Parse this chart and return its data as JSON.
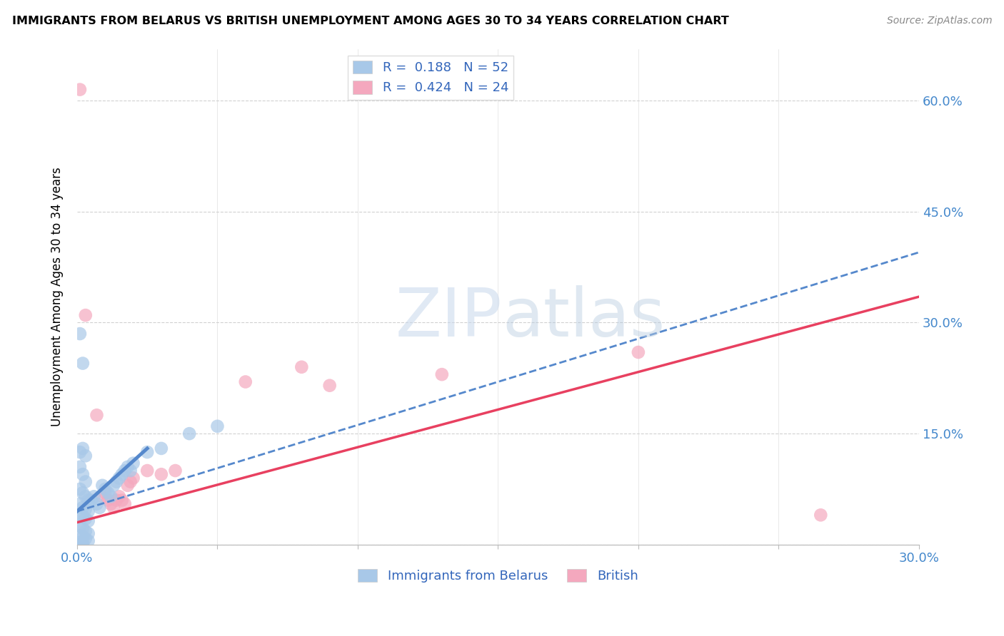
{
  "title": "IMMIGRANTS FROM BELARUS VS BRITISH UNEMPLOYMENT AMONG AGES 30 TO 34 YEARS CORRELATION CHART",
  "source": "Source: ZipAtlas.com",
  "ylabel": "Unemployment Among Ages 30 to 34 years",
  "legend_labels": [
    "Immigrants from Belarus",
    "British"
  ],
  "R_blue": 0.188,
  "N_blue": 52,
  "R_pink": 0.424,
  "N_pink": 24,
  "xlim": [
    0.0,
    0.3
  ],
  "ylim": [
    0.0,
    0.67
  ],
  "xticks": [
    0.0,
    0.05,
    0.1,
    0.15,
    0.2,
    0.25,
    0.3
  ],
  "yticks": [
    0.0,
    0.15,
    0.3,
    0.45,
    0.6
  ],
  "watermark_zip": "ZIP",
  "watermark_atlas": "atlas",
  "blue_color": "#a8c8e8",
  "pink_color": "#f4a8be",
  "blue_line_color": "#5588cc",
  "pink_line_color": "#e84060",
  "blue_dots": [
    [
      0.001,
      0.285
    ],
    [
      0.002,
      0.245
    ],
    [
      0.001,
      0.125
    ],
    [
      0.002,
      0.13
    ],
    [
      0.003,
      0.12
    ],
    [
      0.001,
      0.105
    ],
    [
      0.002,
      0.095
    ],
    [
      0.003,
      0.085
    ],
    [
      0.001,
      0.075
    ],
    [
      0.002,
      0.07
    ],
    [
      0.003,
      0.065
    ],
    [
      0.004,
      0.06
    ],
    [
      0.001,
      0.055
    ],
    [
      0.002,
      0.05
    ],
    [
      0.003,
      0.048
    ],
    [
      0.004,
      0.045
    ],
    [
      0.001,
      0.04
    ],
    [
      0.002,
      0.038
    ],
    [
      0.003,
      0.035
    ],
    [
      0.004,
      0.032
    ],
    [
      0.001,
      0.025
    ],
    [
      0.002,
      0.022
    ],
    [
      0.003,
      0.018
    ],
    [
      0.004,
      0.015
    ],
    [
      0.001,
      0.012
    ],
    [
      0.002,
      0.01
    ],
    [
      0.003,
      0.008
    ],
    [
      0.004,
      0.005
    ],
    [
      0.001,
      0.003
    ],
    [
      0.002,
      0.001
    ],
    [
      0.001,
      0.0
    ],
    [
      0.002,
      0.0
    ],
    [
      0.005,
      0.06
    ],
    [
      0.006,
      0.065
    ],
    [
      0.007,
      0.055
    ],
    [
      0.008,
      0.05
    ],
    [
      0.009,
      0.08
    ],
    [
      0.01,
      0.075
    ],
    [
      0.011,
      0.07
    ],
    [
      0.012,
      0.065
    ],
    [
      0.013,
      0.08
    ],
    [
      0.014,
      0.085
    ],
    [
      0.015,
      0.09
    ],
    [
      0.016,
      0.095
    ],
    [
      0.017,
      0.1
    ],
    [
      0.018,
      0.105
    ],
    [
      0.019,
      0.1
    ],
    [
      0.02,
      0.11
    ],
    [
      0.025,
      0.125
    ],
    [
      0.03,
      0.13
    ],
    [
      0.04,
      0.15
    ],
    [
      0.05,
      0.16
    ]
  ],
  "pink_dots": [
    [
      0.001,
      0.615
    ],
    [
      0.003,
      0.31
    ],
    [
      0.007,
      0.175
    ],
    [
      0.009,
      0.065
    ],
    [
      0.01,
      0.07
    ],
    [
      0.011,
      0.06
    ],
    [
      0.012,
      0.055
    ],
    [
      0.013,
      0.05
    ],
    [
      0.014,
      0.06
    ],
    [
      0.015,
      0.065
    ],
    [
      0.016,
      0.06
    ],
    [
      0.017,
      0.055
    ],
    [
      0.018,
      0.08
    ],
    [
      0.019,
      0.085
    ],
    [
      0.02,
      0.09
    ],
    [
      0.025,
      0.1
    ],
    [
      0.03,
      0.095
    ],
    [
      0.035,
      0.1
    ],
    [
      0.06,
      0.22
    ],
    [
      0.08,
      0.24
    ],
    [
      0.09,
      0.215
    ],
    [
      0.13,
      0.23
    ],
    [
      0.2,
      0.26
    ],
    [
      0.265,
      0.04
    ]
  ],
  "blue_trend": [
    0.0,
    0.045,
    0.3,
    0.395
  ],
  "pink_trend": [
    0.0,
    0.03,
    0.3,
    0.335
  ]
}
